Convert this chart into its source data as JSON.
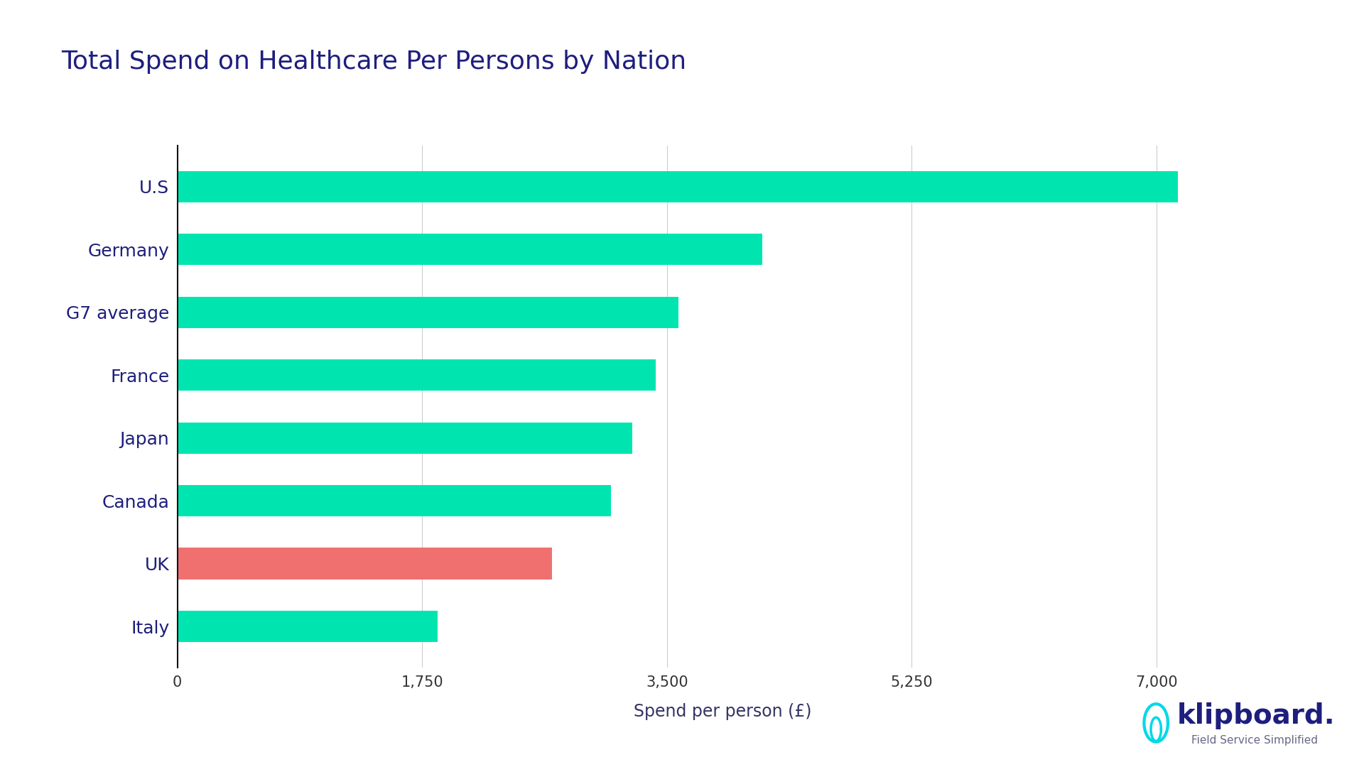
{
  "title": "Total Spend on Healthcare Per Persons by Nation",
  "title_color": "#1e1e7e",
  "title_fontsize": 26,
  "xlabel": "Spend per person (£)",
  "xlabel_fontsize": 17,
  "xlabel_color": "#333366",
  "categories": [
    "Italy",
    "UK",
    "Canada",
    "Japan",
    "France",
    "G7 average",
    "Germany",
    "U.S"
  ],
  "values": [
    1860,
    2680,
    3100,
    3250,
    3420,
    3580,
    4180,
    7150
  ],
  "bar_colors": [
    "#00e5b0",
    "#f07070",
    "#00e5b0",
    "#00e5b0",
    "#00e5b0",
    "#00e5b0",
    "#00e5b0",
    "#00e5b0"
  ],
  "bar_height": 0.5,
  "xlim": [
    0,
    7800
  ],
  "xticks": [
    0,
    1750,
    3500,
    5250,
    7000
  ],
  "xtick_labels": [
    "0",
    "1,750",
    "3,500",
    "5,250",
    "7,000"
  ],
  "xtick_fontsize": 15,
  "ytick_fontsize": 18,
  "grid_color": "#cccccc",
  "spine_color": "#111111",
  "background_color": "#ffffff",
  "klipboard_text": "klipboard.",
  "klipboard_subtitle": "Field Service Simplified",
  "klipboard_color": "#1e1e7e",
  "klipboard_cyan": "#00d8e8",
  "ytick_color": "#1e1e7e",
  "xtick_color": "#333333"
}
